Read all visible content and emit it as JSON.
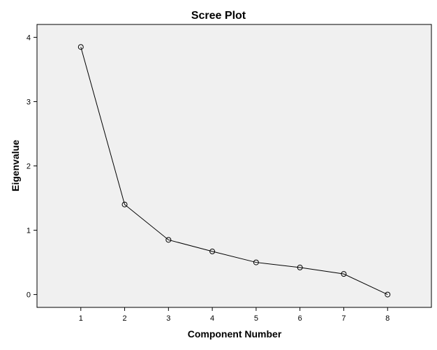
{
  "chart_data": {
    "type": "line",
    "title": "Scree Plot",
    "xlabel": "Component Number",
    "ylabel": "Eigenvalue",
    "x": [
      1,
      2,
      3,
      4,
      5,
      6,
      7,
      8
    ],
    "values": [
      3.85,
      1.4,
      0.85,
      0.67,
      0.5,
      0.42,
      0.32,
      0.0
    ],
    "xlim": [
      0,
      9
    ],
    "ylim": [
      -0.2,
      4.2
    ],
    "xticks": [
      "1",
      "2",
      "3",
      "4",
      "5",
      "6",
      "7",
      "8"
    ],
    "yticks": [
      "0",
      "1",
      "2",
      "3",
      "4"
    ],
    "grid": false,
    "marker": "open-circle",
    "colors": {
      "plot_background": "#f0f0f0",
      "line": "#000000",
      "frame": "#000000"
    }
  }
}
